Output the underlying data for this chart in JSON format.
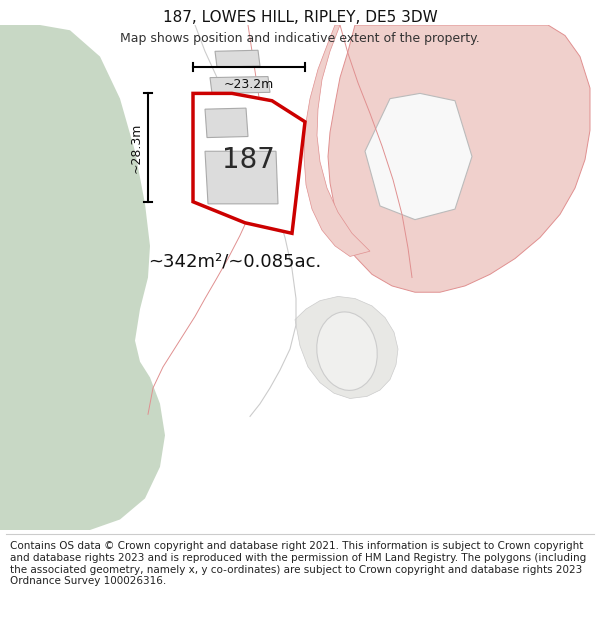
{
  "title": "187, LOWES HILL, RIPLEY, DE5 3DW",
  "subtitle": "Map shows position and indicative extent of the property.",
  "footer": "Contains OS data © Crown copyright and database right 2021. This information is subject to Crown copyright and database rights 2023 and is reproduced with the permission of HM Land Registry. The polygons (including the associated geometry, namely x, y co-ordinates) are subject to Crown copyright and database rights 2023 Ordnance Survey 100026316.",
  "area_label": "~342m²/~0.085ac.",
  "label_187": "187",
  "dim_width": "~23.2m",
  "dim_height": "~28.3m",
  "bg_color": "#ffffff",
  "map_bg": "#f5f5f0",
  "green_color": "#c8d8c5",
  "road_color": "#e8e8e8",
  "white_color": "#ffffff",
  "pink_color": "#f0d0cc",
  "pink_edge": "#e09090",
  "plot_fill": "#ffffff",
  "plot_border": "#cc0000",
  "building_fill": "#dcdcdc",
  "building_border": "#aaaaaa",
  "title_fontsize": 11,
  "subtitle_fontsize": 9,
  "footer_fontsize": 7.5
}
